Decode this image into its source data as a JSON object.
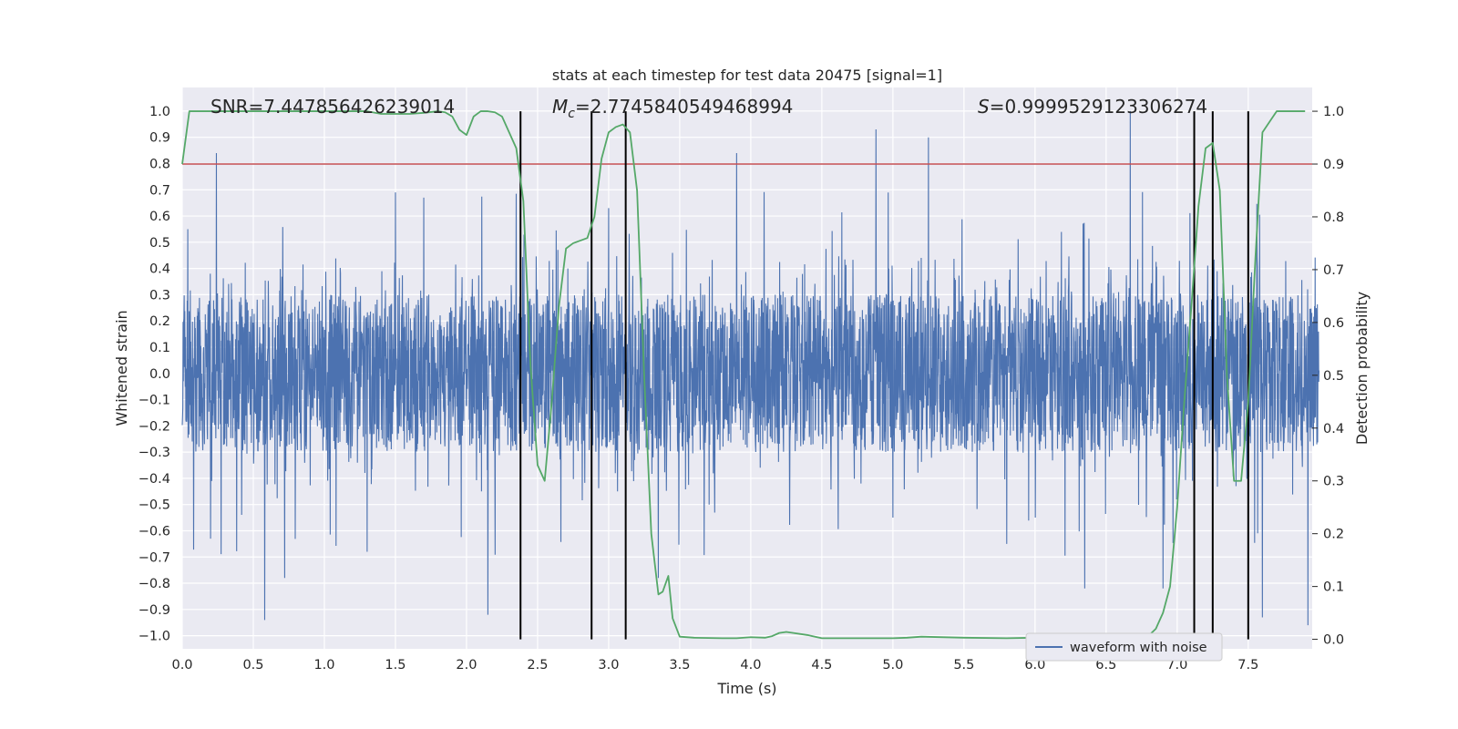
{
  "chart_data": {
    "type": "line",
    "title": "stats at each timestep for test data 20475 [signal=1]",
    "xlabel": "Time (s)",
    "ylabel": "Whitened strain",
    "y2label": "Detection probability",
    "xlim": [
      0.0,
      7.95
    ],
    "ylim": [
      -1.05,
      1.09
    ],
    "y2lim": [
      -0.018,
      1.045
    ],
    "x_ticks": [
      0.0,
      0.5,
      1.0,
      1.5,
      2.0,
      2.5,
      3.0,
      3.5,
      4.0,
      4.5,
      5.0,
      5.5,
      6.0,
      6.5,
      7.0,
      7.5
    ],
    "x_tick_labels": [
      "0.0",
      "0.5",
      "1.0",
      "1.5",
      "2.0",
      "2.5",
      "3.0",
      "3.5",
      "4.0",
      "4.5",
      "5.0",
      "5.5",
      "6.0",
      "6.5",
      "7.0",
      "7.5"
    ],
    "y_ticks": [
      -1.0,
      -0.9,
      -0.8,
      -0.7,
      -0.6,
      -0.5,
      -0.4,
      -0.3,
      -0.2,
      -0.1,
      0.0,
      0.1,
      0.2,
      0.3,
      0.4,
      0.5,
      0.6,
      0.7,
      0.8,
      0.9,
      1.0
    ],
    "y_tick_labels": [
      "−1.0",
      "−0.9",
      "−0.8",
      "−0.7",
      "−0.6",
      "−0.5",
      "−0.4",
      "−0.3",
      "−0.2",
      "−0.1",
      "0.0",
      "0.1",
      "0.2",
      "0.3",
      "0.4",
      "0.5",
      "0.6",
      "0.7",
      "0.8",
      "0.9",
      "1.0"
    ],
    "y2_ticks": [
      0.0,
      0.1,
      0.2,
      0.3,
      0.4,
      0.5,
      0.6,
      0.7,
      0.8,
      0.9,
      1.0
    ],
    "y2_tick_labels": [
      "0.0",
      "0.1",
      "0.2",
      "0.3",
      "0.4",
      "0.5",
      "0.6",
      "0.7",
      "0.8",
      "0.9",
      "1.0"
    ],
    "grid": true,
    "legend_position": "bottom-right",
    "annotations": {
      "snr": "SNR=7.447856426239014",
      "mc_symbol": "M",
      "mc_sub": "c",
      "mc_value": "=2.7745840549468994",
      "s_symbol": "S",
      "s_value": "=0.9999529123306274"
    },
    "threshold_line": {
      "y2": 0.9,
      "color": "#c44e52"
    },
    "vertical_lines_x": [
      2.38,
      2.88,
      3.12,
      7.12,
      7.25,
      7.5
    ],
    "series": [
      {
        "name": "waveform with noise",
        "color": "#4c72b0",
        "axis": "left",
        "samples": 4096,
        "sample_rate_hz": 512,
        "core_amplitude": 0.3,
        "peaks": [
          [
            0.04,
            0.55
          ],
          [
            0.24,
            0.84
          ],
          [
            0.58,
            -0.94
          ],
          [
            0.72,
            -0.78
          ],
          [
            1.5,
            0.69
          ],
          [
            1.7,
            0.67
          ],
          [
            2.15,
            -0.92
          ],
          [
            3.9,
            0.84
          ],
          [
            4.88,
            0.93
          ],
          [
            5.25,
            0.9
          ],
          [
            6.67,
            1.0
          ],
          [
            6.9,
            -0.82
          ],
          [
            7.6,
            -0.93
          ],
          [
            7.92,
            -0.96
          ],
          [
            3.0,
            0.63
          ],
          [
            3.35,
            -0.78
          ],
          [
            5.8,
            -0.65
          ],
          [
            1.3,
            -0.68
          ],
          [
            0.2,
            -0.63
          ],
          [
            6.35,
            -0.82
          ]
        ]
      },
      {
        "name": "",
        "color": "#55a868",
        "axis": "right",
        "x": [
          0.0,
          0.05,
          0.1,
          0.2,
          0.3,
          0.5,
          0.7,
          0.9,
          1.0,
          1.1,
          1.2,
          1.3,
          1.4,
          1.5,
          1.6,
          1.7,
          1.8,
          1.85,
          1.9,
          1.95,
          2.0,
          2.05,
          2.1,
          2.15,
          2.2,
          2.25,
          2.3,
          2.35,
          2.4,
          2.45,
          2.5,
          2.55,
          2.6,
          2.65,
          2.7,
          2.75,
          2.8,
          2.85,
          2.9,
          2.95,
          3.0,
          3.05,
          3.1,
          3.15,
          3.2,
          3.25,
          3.3,
          3.35,
          3.38,
          3.42,
          3.45,
          3.5,
          3.6,
          3.8,
          3.9,
          4.0,
          4.1,
          4.15,
          4.2,
          4.25,
          4.3,
          4.4,
          4.5,
          4.6,
          4.8,
          5.0,
          5.1,
          5.2,
          5.5,
          5.8,
          6.0,
          6.1,
          6.2,
          6.4,
          6.6,
          6.7,
          6.75,
          6.8,
          6.85,
          6.9,
          6.95,
          7.0,
          7.05,
          7.1,
          7.15,
          7.2,
          7.25,
          7.3,
          7.35,
          7.4,
          7.45,
          7.5,
          7.55,
          7.6,
          7.7,
          7.8,
          7.9
        ],
        "y": [
          0.9,
          1.0,
          1.0,
          1.0,
          1.0,
          1.0,
          1.0,
          1.0,
          1.0,
          1.0,
          1.0,
          1.0,
          0.995,
          0.995,
          0.995,
          0.997,
          1.0,
          0.998,
          0.99,
          0.965,
          0.955,
          0.99,
          1.0,
          1.0,
          0.998,
          0.99,
          0.96,
          0.93,
          0.83,
          0.52,
          0.33,
          0.3,
          0.45,
          0.63,
          0.74,
          0.75,
          0.755,
          0.76,
          0.8,
          0.91,
          0.96,
          0.97,
          0.975,
          0.96,
          0.85,
          0.5,
          0.2,
          0.085,
          0.09,
          0.12,
          0.04,
          0.005,
          0.003,
          0.002,
          0.002,
          0.004,
          0.003,
          0.006,
          0.012,
          0.014,
          0.012,
          0.008,
          0.002,
          0.002,
          0.002,
          0.002,
          0.003,
          0.005,
          0.003,
          0.002,
          0.003,
          0.002,
          0.003,
          0.002,
          0.002,
          0.002,
          0.004,
          0.007,
          0.02,
          0.05,
          0.1,
          0.25,
          0.45,
          0.63,
          0.82,
          0.93,
          0.94,
          0.85,
          0.5,
          0.3,
          0.3,
          0.45,
          0.72,
          0.96,
          1.0,
          1.0,
          1.0
        ]
      }
    ]
  }
}
